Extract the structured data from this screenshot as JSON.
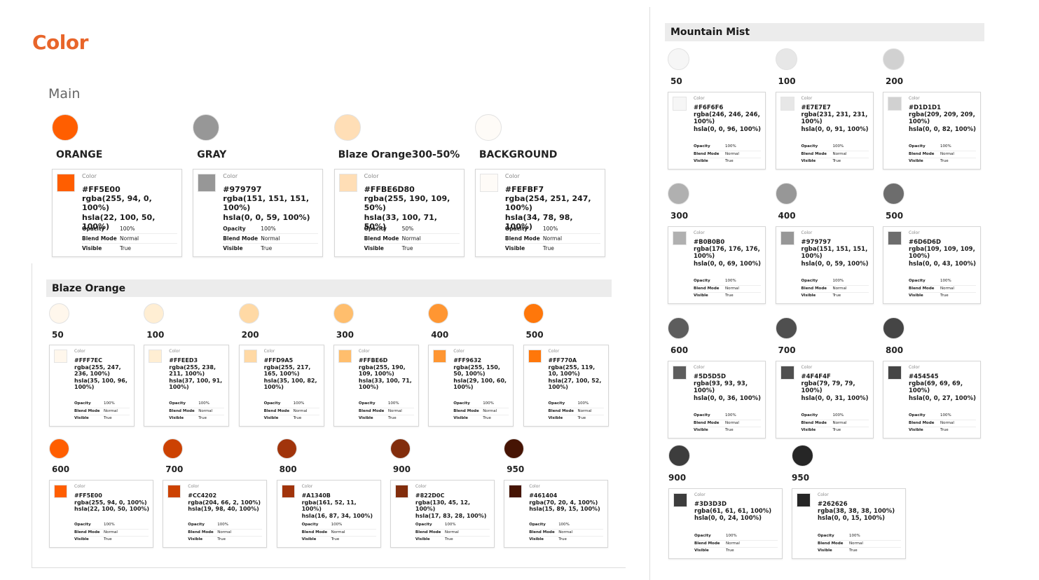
{
  "title": "Color",
  "card_labels": {
    "color": "Color",
    "opacity": "Opacity",
    "blend_mode": "Blend Mode",
    "visible": "Visible"
  },
  "main": {
    "heading": "Main",
    "swatches": [
      {
        "name": "ORANGE",
        "hex": "#FF5E00",
        "rgba": "rgba(255, 94, 0, 100%)",
        "hsla": "hsla(22, 100, 50, 100%)",
        "opacity": "100%",
        "blend_mode": "Normal",
        "visible": "True"
      },
      {
        "name": "GRAY",
        "hex": "#979797",
        "rgba": "rgba(151, 151, 151, 100%)",
        "hsla": "hsla(0, 0, 59, 100%)",
        "opacity": "100%",
        "blend_mode": "Normal",
        "visible": "True"
      },
      {
        "name": "Blaze Orange300-50%",
        "hex": "#FFBE6D80",
        "rgba": "rgba(255, 190, 109, 50%)",
        "hsla": "hsla(33, 100, 71, 50%)",
        "opacity": "50%",
        "blend_mode": "Normal",
        "visible": "True"
      },
      {
        "name": "BACKGROUND",
        "hex": "#FEFBF7",
        "rgba": "rgba(254, 251, 247, 100%)",
        "hsla": "hsla(34, 78, 98, 100%)",
        "opacity": "100%",
        "blend_mode": "Normal",
        "visible": "True"
      }
    ]
  },
  "blaze_orange": {
    "heading": "Blaze Orange",
    "swatches": [
      {
        "name": "50",
        "hex": "#FFF7EC",
        "rgba": "rgba(255, 247, 236, 100%)",
        "hsla": "hsla(35, 100, 96, 100%)",
        "opacity": "100%",
        "blend_mode": "Normal",
        "visible": "True"
      },
      {
        "name": "100",
        "hex": "#FFEED3",
        "rgba": "rgba(255, 238, 211, 100%)",
        "hsla": "hsla(37, 100, 91, 100%)",
        "opacity": "100%",
        "blend_mode": "Normal",
        "visible": "True"
      },
      {
        "name": "200",
        "hex": "#FFD9A5",
        "rgba": "rgba(255, 217, 165, 100%)",
        "hsla": "hsla(35, 100, 82, 100%)",
        "opacity": "100%",
        "blend_mode": "Normal",
        "visible": "True"
      },
      {
        "name": "300",
        "hex": "#FFBE6D",
        "rgba": "rgba(255, 190, 109, 100%)",
        "hsla": "hsla(33, 100, 71, 100%)",
        "opacity": "100%",
        "blend_mode": "Normal",
        "visible": "True"
      },
      {
        "name": "400",
        "hex": "#FF9632",
        "rgba": "rgba(255, 150, 50, 100%)",
        "hsla": "hsla(29, 100, 60, 100%)",
        "opacity": "100%",
        "blend_mode": "Normal",
        "visible": "True"
      },
      {
        "name": "500",
        "hex": "#FF770A",
        "rgba": "rgba(255, 119, 10, 100%)",
        "hsla": "hsla(27, 100, 52, 100%)",
        "opacity": "100%",
        "blend_mode": "Normal",
        "visible": "True"
      },
      {
        "name": "600",
        "hex": "#FF5E00",
        "rgba": "rgba(255, 94, 0, 100%)",
        "hsla": "hsla(22, 100, 50, 100%)",
        "opacity": "100%",
        "blend_mode": "Normal",
        "visible": "True"
      },
      {
        "name": "700",
        "hex": "#CC4202",
        "rgba": "rgba(204, 66, 2, 100%)",
        "hsla": "hsla(19, 98, 40, 100%)",
        "opacity": "100%",
        "blend_mode": "Normal",
        "visible": "True"
      },
      {
        "name": "800",
        "hex": "#A1340B",
        "rgba": "rgba(161, 52, 11, 100%)",
        "hsla": "hsla(16, 87, 34, 100%)",
        "opacity": "100%",
        "blend_mode": "Normal",
        "visible": "True"
      },
      {
        "name": "900",
        "hex": "#822D0C",
        "rgba": "rgba(130, 45, 12, 100%)",
        "hsla": "hsla(17, 83, 28, 100%)",
        "opacity": "100%",
        "blend_mode": "Normal",
        "visible": "True"
      },
      {
        "name": "950",
        "hex": "#461404",
        "rgba": "rgba(70, 20, 4, 100%)",
        "hsla": "hsla(15, 89, 15, 100%)",
        "opacity": "100%",
        "blend_mode": "Normal",
        "visible": "True"
      }
    ]
  },
  "mountain_mist": {
    "heading": "Mountain Mist",
    "swatches": [
      {
        "name": "50",
        "hex": "#F6F6F6",
        "rgba": "rgba(246, 246, 246, 100%)",
        "hsla": "hsla(0, 0, 96, 100%)",
        "opacity": "100%",
        "blend_mode": "Normal",
        "visible": "True"
      },
      {
        "name": "100",
        "hex": "#E7E7E7",
        "rgba": "rgba(231, 231, 231, 100%)",
        "hsla": "hsla(0, 0, 91, 100%)",
        "opacity": "100%",
        "blend_mode": "Normal",
        "visible": "True"
      },
      {
        "name": "200",
        "hex": "#D1D1D1",
        "rgba": "rgba(209, 209, 209, 100%)",
        "hsla": "hsla(0, 0, 82, 100%)",
        "opacity": "100%",
        "blend_mode": "Normal",
        "visible": "True"
      },
      {
        "name": "300",
        "hex": "#B0B0B0",
        "rgba": "rgba(176, 176, 176, 100%)",
        "hsla": "hsla(0, 0, 69, 100%)",
        "opacity": "100%",
        "blend_mode": "Normal",
        "visible": "True"
      },
      {
        "name": "400",
        "hex": "#979797",
        "rgba": "rgba(151, 151, 151, 100%)",
        "hsla": "hsla(0, 0, 59, 100%)",
        "opacity": "100%",
        "blend_mode": "Normal",
        "visible": "True"
      },
      {
        "name": "500",
        "hex": "#6D6D6D",
        "rgba": "rgba(109, 109, 109, 100%)",
        "hsla": "hsla(0, 0, 43, 100%)",
        "opacity": "100%",
        "blend_mode": "Normal",
        "visible": "True"
      },
      {
        "name": "600",
        "hex": "#5D5D5D",
        "rgba": "rgba(93, 93, 93, 100%)",
        "hsla": "hsla(0, 0, 36, 100%)",
        "opacity": "100%",
        "blend_mode": "Normal",
        "visible": "True"
      },
      {
        "name": "700",
        "hex": "#4F4F4F",
        "rgba": "rgba(79, 79, 79, 100%)",
        "hsla": "hsla(0, 0, 31, 100%)",
        "opacity": "100%",
        "blend_mode": "Normal",
        "visible": "True"
      },
      {
        "name": "800",
        "hex": "#454545",
        "rgba": "rgba(69, 69, 69, 100%)",
        "hsla": "hsla(0, 0, 27, 100%)",
        "opacity": "100%",
        "blend_mode": "Normal",
        "visible": "True"
      },
      {
        "name": "900",
        "hex": "#3D3D3D",
        "rgba": "rgba(61, 61, 61, 100%)",
        "hsla": "hsla(0, 0, 24, 100%)",
        "opacity": "100%",
        "blend_mode": "Normal",
        "visible": "True"
      },
      {
        "name": "950",
        "hex": "#262626",
        "rgba": "rgba(38, 38, 38, 100%)",
        "hsla": "hsla(0, 0, 15, 100%)",
        "opacity": "100%",
        "blend_mode": "Normal",
        "visible": "True"
      }
    ]
  }
}
